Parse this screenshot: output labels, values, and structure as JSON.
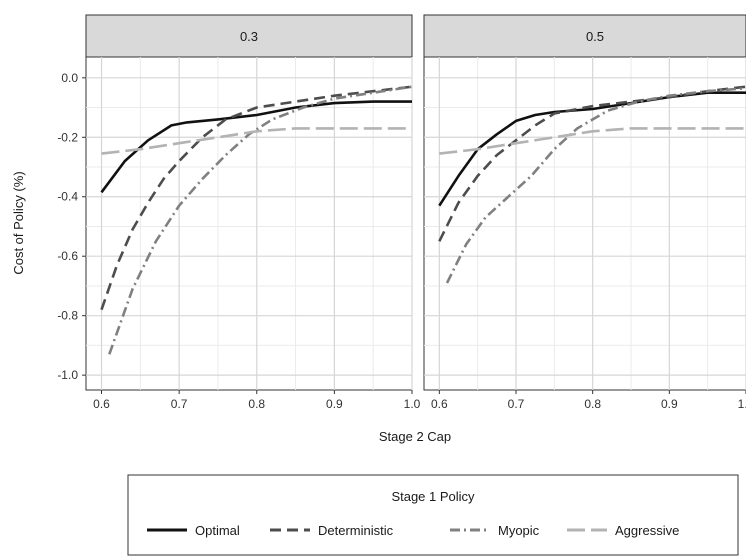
{
  "chart_data": {
    "type": "line",
    "xlabel": "Stage 2 Cap",
    "ylabel": "Cost of Policy (%)",
    "xlim": [
      0.6,
      1.0
    ],
    "ylim": [
      -1.0,
      0.0
    ],
    "xticks": [
      "0.6",
      "0.7",
      "0.8",
      "0.9",
      "1.0"
    ],
    "yticks": [
      "0.0",
      "-0.2",
      "-0.4",
      "-0.6",
      "-0.8",
      "-1.0"
    ],
    "grid": true,
    "legend": {
      "title": "Stage 1 Policy",
      "placement": "bottom",
      "entries": [
        "Optimal",
        "Deterministic",
        "Myopic",
        "Aggressive"
      ]
    },
    "styles": {
      "Optimal": {
        "color": "#111111",
        "dash": "solid"
      },
      "Deterministic": {
        "color": "#4d4d4d",
        "dash": "dashed"
      },
      "Myopic": {
        "color": "#808080",
        "dash": "dotdash"
      },
      "Aggressive": {
        "color": "#b3b3b3",
        "dash": "longdash"
      }
    },
    "panels": [
      {
        "label": "0.3",
        "series": [
          {
            "name": "Optimal",
            "x": [
              0.6,
              0.63,
              0.66,
              0.69,
              0.71,
              0.75,
              0.8,
              0.85,
              0.9,
              0.95,
              1.0
            ],
            "y": [
              -0.385,
              -0.28,
              -0.21,
              -0.16,
              -0.15,
              -0.14,
              -0.125,
              -0.1,
              -0.085,
              -0.08,
              -0.08
            ]
          },
          {
            "name": "Deterministic",
            "x": [
              0.6,
              0.62,
              0.64,
              0.66,
              0.68,
              0.7,
              0.73,
              0.76,
              0.8,
              0.85,
              0.9,
              0.95,
              1.0
            ],
            "y": [
              -0.78,
              -0.63,
              -0.51,
              -0.42,
              -0.34,
              -0.28,
              -0.2,
              -0.14,
              -0.1,
              -0.08,
              -0.06,
              -0.045,
              -0.03
            ]
          },
          {
            "name": "Myopic",
            "x": [
              0.61,
              0.64,
              0.67,
              0.7,
              0.73,
              0.76,
              0.79,
              0.82,
              0.86,
              0.9,
              0.95,
              1.0
            ],
            "y": [
              -0.93,
              -0.71,
              -0.55,
              -0.43,
              -0.34,
              -0.26,
              -0.19,
              -0.14,
              -0.1,
              -0.07,
              -0.05,
              -0.03
            ]
          },
          {
            "name": "Aggressive",
            "x": [
              0.6,
              0.65,
              0.7,
              0.75,
              0.8,
              0.85,
              0.9,
              1.0
            ],
            "y": [
              -0.255,
              -0.24,
              -0.22,
              -0.2,
              -0.18,
              -0.17,
              -0.17,
              -0.17
            ]
          }
        ]
      },
      {
        "label": "0.5",
        "series": [
          {
            "name": "Optimal",
            "x": [
              0.6,
              0.625,
              0.65,
              0.675,
              0.7,
              0.725,
              0.75,
              0.8,
              0.85,
              0.9,
              0.95,
              1.0
            ],
            "y": [
              -0.43,
              -0.33,
              -0.24,
              -0.19,
              -0.145,
              -0.125,
              -0.115,
              -0.105,
              -0.085,
              -0.065,
              -0.05,
              -0.05
            ]
          },
          {
            "name": "Deterministic",
            "x": [
              0.6,
              0.625,
              0.65,
              0.675,
              0.7,
              0.725,
              0.75,
              0.8,
              0.85,
              0.9,
              0.95,
              1.0
            ],
            "y": [
              -0.55,
              -0.42,
              -0.33,
              -0.26,
              -0.21,
              -0.16,
              -0.12,
              -0.095,
              -0.08,
              -0.065,
              -0.045,
              -0.03
            ]
          },
          {
            "name": "Myopic",
            "x": [
              0.61,
              0.635,
              0.66,
              0.69,
              0.72,
              0.75,
              0.78,
              0.82,
              0.86,
              0.9,
              0.95,
              1.0
            ],
            "y": [
              -0.69,
              -0.56,
              -0.47,
              -0.4,
              -0.33,
              -0.24,
              -0.17,
              -0.11,
              -0.08,
              -0.06,
              -0.045,
              -0.035
            ]
          },
          {
            "name": "Aggressive",
            "x": [
              0.6,
              0.65,
              0.7,
              0.75,
              0.8,
              0.85,
              0.9,
              1.0
            ],
            "y": [
              -0.255,
              -0.24,
              -0.22,
              -0.2,
              -0.18,
              -0.17,
              -0.17,
              -0.17
            ]
          }
        ]
      }
    ]
  }
}
